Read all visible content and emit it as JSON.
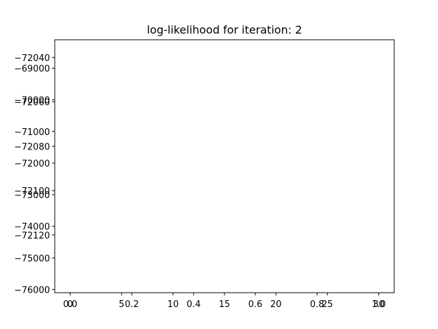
{
  "chart_data": [
    {
      "type": "line",
      "title": "log-likelihood for iteration: 2",
      "xlabel": "",
      "ylabel": "",
      "series": [],
      "xlim": [
        -1.5,
        31.5
      ],
      "ylim": [
        -76100,
        -68100
      ],
      "xticks": [
        0,
        5,
        10,
        15,
        20,
        25,
        30
      ],
      "yticks": [
        -76000,
        -75000,
        -74000,
        -73000,
        -72000,
        -71000,
        -70000,
        -69000
      ],
      "grid": false
    },
    {
      "type": "line",
      "title": "",
      "xlabel": "",
      "ylabel": "",
      "series": [],
      "xlim": [
        -0.05,
        1.05
      ],
      "ylim": [
        -72146,
        -72032
      ],
      "xticks": [
        0.0,
        0.2,
        0.4,
        0.6,
        0.8,
        1.0
      ],
      "yticks": [
        -72040,
        -72060,
        -72080,
        -72100,
        -72120
      ],
      "grid": false
    }
  ]
}
